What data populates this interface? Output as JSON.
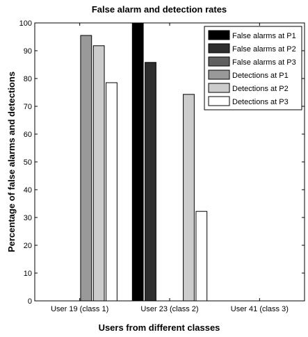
{
  "chart_data": {
    "type": "bar",
    "title": "False alarm and detection rates",
    "xlabel": "Users from different classes",
    "ylabel": "Percentage of false alarms and detections",
    "categories": [
      "User 19 (class 1)",
      "User 23 (class 2)",
      "User 41 (class 3)"
    ],
    "ylim": [
      0,
      100
    ],
    "yticks": [
      0,
      10,
      20,
      30,
      40,
      50,
      60,
      70,
      80,
      90,
      100
    ],
    "grid": false,
    "legend_position": "top-right",
    "series": [
      {
        "name": "False alarms at P1",
        "color": "#000000",
        "values": [
          0,
          100,
          0
        ]
      },
      {
        "name": "False alarms at P2",
        "color": "#2e2e2e",
        "values": [
          0,
          85.8,
          0
        ]
      },
      {
        "name": "False alarms at P3",
        "color": "#606060",
        "values": [
          0,
          0,
          0
        ]
      },
      {
        "name": "Detections at P1",
        "color": "#999999",
        "values": [
          95.5,
          0,
          0
        ]
      },
      {
        "name": "Detections at P2",
        "color": "#cccccc",
        "values": [
          91.8,
          74.3,
          0
        ]
      },
      {
        "name": "Detections at P3",
        "color": "#ffffff",
        "values": [
          78.5,
          32.2,
          0
        ]
      }
    ]
  }
}
